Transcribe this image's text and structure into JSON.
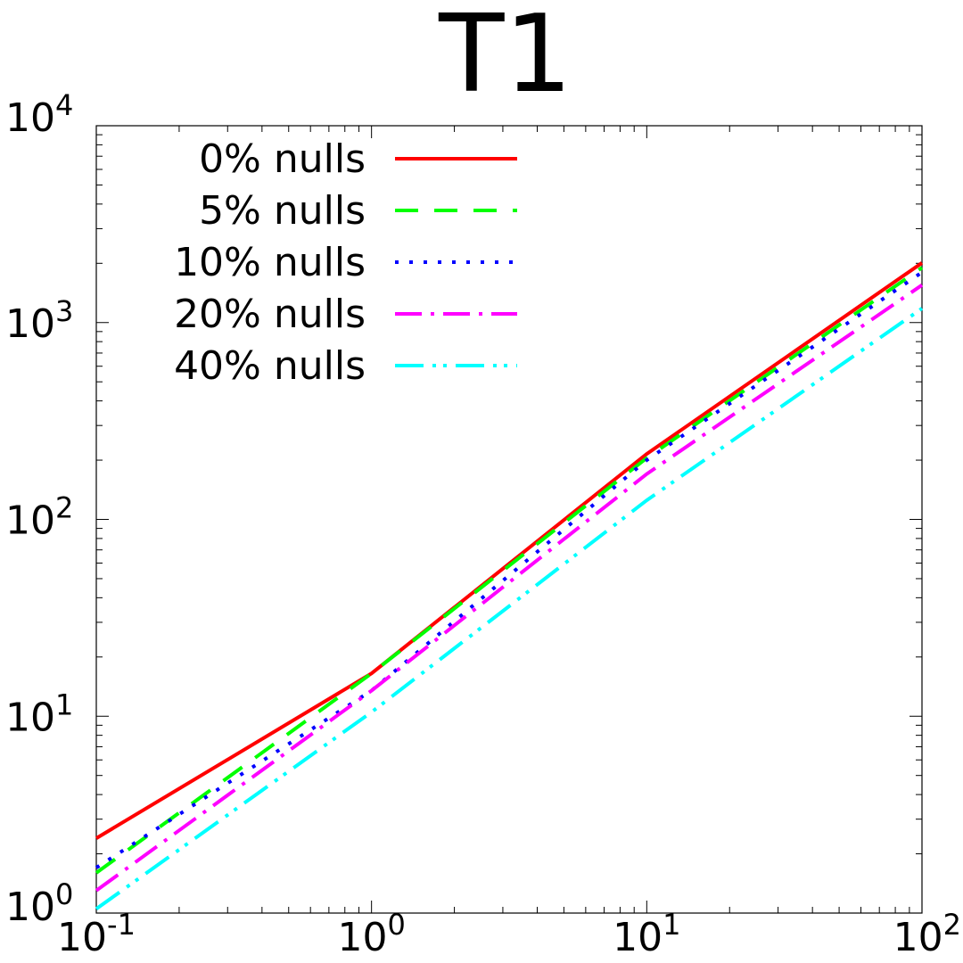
{
  "chart_data": {
    "type": "line",
    "title": "T1",
    "xlabel": "",
    "ylabel": "",
    "x_scale": "log",
    "y_scale": "log",
    "xlim": [
      0.1,
      100
    ],
    "ylim": [
      1,
      10000
    ],
    "grid": false,
    "legend_position": "top-left",
    "x_ticks": [
      {
        "value": 0.1,
        "base": "10",
        "exp": "-1"
      },
      {
        "value": 1,
        "base": "10",
        "exp": "0"
      },
      {
        "value": 10,
        "base": "10",
        "exp": "1"
      },
      {
        "value": 100,
        "base": "10",
        "exp": "2"
      }
    ],
    "y_ticks": [
      {
        "value": 1,
        "base": "10",
        "exp": "0"
      },
      {
        "value": 10,
        "base": "10",
        "exp": "1"
      },
      {
        "value": 100,
        "base": "10",
        "exp": "2"
      },
      {
        "value": 1000,
        "base": "10",
        "exp": "3"
      },
      {
        "value": 10000,
        "base": "10",
        "exp": "4"
      }
    ],
    "x": [
      0.1,
      1,
      10,
      100
    ],
    "series": [
      {
        "name": "0% nulls",
        "values": [
          2.4,
          16.5,
          215,
          2010
        ],
        "color": "#ff0000",
        "dash": "solid"
      },
      {
        "name": "5% nulls",
        "values": [
          1.6,
          16.5,
          205,
          1900
        ],
        "color": "#00ff00",
        "dash": "dash"
      },
      {
        "name": "10% nulls",
        "values": [
          1.7,
          13.5,
          200,
          1800
        ],
        "color": "#0000ff",
        "dash": "dot"
      },
      {
        "name": "20% nulls",
        "values": [
          1.3,
          13.5,
          170,
          1550
        ],
        "color": "#ff00ff",
        "dash": "dashdot"
      },
      {
        "name": "40% nulls",
        "values": [
          1.05,
          10.5,
          125,
          1180
        ],
        "color": "#00ffff",
        "dash": "dashdotdot"
      }
    ]
  }
}
